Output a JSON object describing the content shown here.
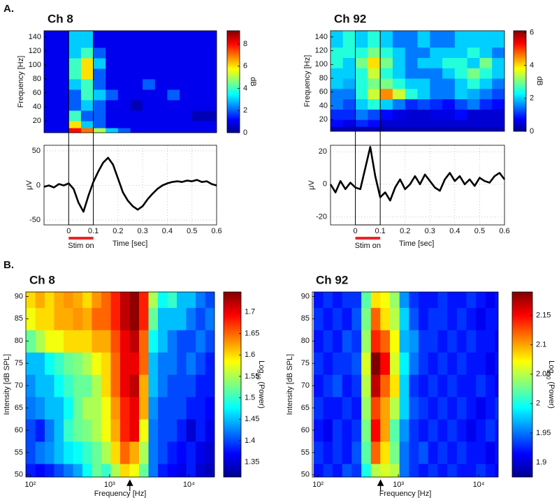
{
  "panel_labels": [
    "A.",
    "B."
  ],
  "chart_data": [
    {
      "type": "heatmap",
      "title": "Ch 8",
      "ylabel": "Frequency [Hz]",
      "colormap": "jet",
      "xlim": [
        -0.1,
        0.6
      ],
      "ylim": [
        3,
        149
      ],
      "yticks": [
        20,
        40,
        60,
        80,
        100,
        120,
        140
      ],
      "xbins": [
        -0.1,
        -0.05,
        0,
        0.05,
        0.1,
        0.15,
        0.2,
        0.25,
        0.3,
        0.35,
        0.4,
        0.45,
        0.5,
        0.55,
        0.6
      ],
      "ybins": [
        3,
        10,
        20,
        35,
        50,
        65,
        80,
        95,
        110,
        125,
        149
      ],
      "values": [
        [
          1,
          1,
          8,
          7,
          5,
          3,
          2,
          1,
          1,
          1,
          1,
          1,
          1,
          1
        ],
        [
          1,
          1,
          6,
          3,
          2,
          1,
          1,
          1,
          1,
          1,
          1,
          1,
          1,
          1
        ],
        [
          1,
          1,
          4,
          2,
          2,
          1,
          1,
          1,
          1,
          1,
          1,
          1,
          0.5,
          0.5
        ],
        [
          1,
          1,
          2,
          3,
          2,
          1,
          1,
          0.5,
          1,
          1,
          1,
          1,
          1,
          1
        ],
        [
          1,
          1,
          2,
          4,
          3,
          2,
          1,
          1,
          1,
          1,
          2,
          1,
          1,
          1
        ],
        [
          1,
          1,
          3,
          4,
          2,
          1,
          1,
          1,
          2,
          1,
          1,
          1,
          1,
          1
        ],
        [
          1,
          1,
          4,
          6,
          2,
          1,
          1,
          1,
          1,
          1,
          1,
          1,
          1,
          1
        ],
        [
          1,
          1,
          4,
          6,
          3,
          1,
          1,
          1,
          1,
          1,
          1,
          1,
          1,
          1
        ],
        [
          1,
          1,
          3,
          4,
          2,
          1,
          1,
          1,
          1,
          1,
          1,
          1,
          1,
          1
        ],
        [
          1,
          1,
          3,
          3,
          1,
          1,
          1,
          1,
          1,
          1,
          1,
          1,
          1,
          1
        ]
      ],
      "clim": [
        0,
        9.2
      ],
      "cticks": [
        0,
        2,
        4,
        6,
        8
      ],
      "colorbar_label": [
        "dB"
      ]
    },
    {
      "type": "line",
      "ylabel": "μV",
      "xlabel": "Time [sec]",
      "color": "#000000",
      "grid": true,
      "xlim": [
        -0.1,
        0.6
      ],
      "ylim": [
        -57,
        58
      ],
      "xticks": [
        0,
        0.1,
        0.2,
        0.3,
        0.4,
        0.5,
        0.6
      ],
      "yticks": [
        -50,
        0,
        50
      ],
      "x": [
        -0.1,
        -0.08,
        -0.06,
        -0.04,
        -0.02,
        0,
        0.02,
        0.04,
        0.06,
        0.08,
        0.1,
        0.12,
        0.14,
        0.16,
        0.18,
        0.2,
        0.22,
        0.24,
        0.26,
        0.28,
        0.3,
        0.32,
        0.34,
        0.36,
        0.38,
        0.4,
        0.42,
        0.44,
        0.46,
        0.48,
        0.5,
        0.52,
        0.54,
        0.56,
        0.58,
        0.6
      ],
      "values": [
        -2,
        0,
        -3,
        2,
        0,
        3,
        -5,
        -25,
        -38,
        -15,
        5,
        20,
        33,
        40,
        30,
        10,
        -10,
        -22,
        -30,
        -35,
        -30,
        -20,
        -12,
        -5,
        0,
        3,
        5,
        6,
        5,
        7,
        6,
        8,
        5,
        6,
        2,
        0
      ],
      "stim_window": [
        0,
        0.1
      ],
      "stim_label": "Stim on",
      "stim_color": "#e8262a"
    },
    {
      "type": "heatmap",
      "title": "Ch 92",
      "ylabel": "Frequency [Hz]",
      "colormap": "jet",
      "xlim": [
        -0.1,
        0.6
      ],
      "ylim": [
        3,
        149
      ],
      "yticks": [
        20,
        40,
        60,
        80,
        100,
        120,
        140
      ],
      "xbins": [
        -0.1,
        -0.05,
        0,
        0.05,
        0.1,
        0.15,
        0.2,
        0.25,
        0.3,
        0.35,
        0.4,
        0.45,
        0.5,
        0.55,
        0.6
      ],
      "ybins": [
        3,
        10,
        20,
        35,
        50,
        65,
        80,
        95,
        110,
        125,
        149
      ],
      "values": [
        [
          0.3,
          0.3,
          0.3,
          0.3,
          0.3,
          0.3,
          0.3,
          0.3,
          0.3,
          0.3,
          0.3,
          0.3,
          0.3,
          0.3
        ],
        [
          0.8,
          0.6,
          1,
          0.8,
          0.5,
          0.5,
          0.5,
          0.5,
          0.5,
          0.5,
          0.5,
          0.5,
          0.5,
          0.5
        ],
        [
          1,
          1,
          1.5,
          1.2,
          0.8,
          0.6,
          0.5,
          0.5,
          0.6,
          0.6,
          0.8,
          0.5,
          0.5,
          0.5
        ],
        [
          1.5,
          1.2,
          2,
          2.5,
          2,
          1.5,
          1,
          1.2,
          1,
          0.8,
          1.2,
          1.5,
          1,
          0.8
        ],
        [
          1.5,
          1.5,
          2.5,
          3.5,
          4.5,
          3.5,
          2.5,
          2,
          1.5,
          1.5,
          2,
          1.8,
          1.5,
          1.2
        ],
        [
          2,
          1.8,
          2.5,
          3,
          3,
          2.5,
          2,
          2,
          1.5,
          1.5,
          2,
          2.5,
          2,
          1.5
        ],
        [
          2,
          2,
          2.5,
          3.5,
          2.5,
          2,
          1.5,
          1.5,
          1.5,
          2,
          2.5,
          3,
          2.5,
          2
        ],
        [
          2.5,
          2,
          3,
          4,
          3,
          2,
          1.5,
          2,
          2,
          2.5,
          2.5,
          2,
          3,
          2
        ],
        [
          2.5,
          2.5,
          2.5,
          3,
          2.5,
          2,
          1.5,
          1.5,
          2,
          2,
          2,
          2.5,
          2,
          1.5
        ],
        [
          2,
          2.5,
          2,
          2.5,
          2,
          1.5,
          1.5,
          2,
          1.5,
          1.5,
          2,
          2,
          2,
          2
        ]
      ],
      "clim": [
        0,
        6.1
      ],
      "cticks": [
        0,
        2,
        4,
        6
      ],
      "colorbar_label": [
        "dB"
      ]
    },
    {
      "type": "line",
      "ylabel": "μV",
      "xlabel": "Time [sec]",
      "color": "#000000",
      "grid": true,
      "xlim": [
        -0.1,
        0.6
      ],
      "ylim": [
        -25,
        24
      ],
      "xticks": [
        0,
        0.1,
        0.2,
        0.3,
        0.4,
        0.5,
        0.6
      ],
      "yticks": [
        -20,
        0,
        20
      ],
      "x": [
        -0.1,
        -0.08,
        -0.06,
        -0.04,
        -0.02,
        0,
        0.02,
        0.04,
        0.06,
        0.08,
        0.1,
        0.12,
        0.14,
        0.16,
        0.18,
        0.2,
        0.22,
        0.24,
        0.26,
        0.28,
        0.3,
        0.32,
        0.34,
        0.36,
        0.38,
        0.4,
        0.42,
        0.44,
        0.46,
        0.48,
        0.5,
        0.52,
        0.54,
        0.56,
        0.58,
        0.6
      ],
      "values": [
        0,
        -5,
        2,
        -3,
        1,
        -2,
        -3,
        10,
        23,
        5,
        -8,
        -5,
        -10,
        -2,
        3,
        -3,
        0,
        5,
        0,
        6,
        2,
        -2,
        -4,
        3,
        7,
        2,
        5,
        0,
        3,
        -1,
        4,
        2,
        1,
        5,
        7,
        3
      ],
      "stim_window": [
        0,
        0.1
      ],
      "stim_label": "Stim on",
      "stim_color": "#e8262a"
    },
    {
      "type": "heatmap",
      "title": "Ch 8",
      "xlabel": "Frequency [Hz]",
      "ylabel": "Intensity [dB SPL]",
      "colormap": "jet",
      "xscale": "log",
      "xlim": [
        88,
        21000
      ],
      "ylim": [
        49.5,
        91
      ],
      "xticks": [
        {
          "value": 100,
          "label": "10²"
        },
        {
          "value": 1000,
          "label": "10³"
        },
        {
          "value": 10000,
          "label": "10⁴"
        }
      ],
      "yticks": [
        50,
        55,
        60,
        65,
        70,
        75,
        80,
        85,
        90
      ],
      "xbins": [
        88,
        116,
        152,
        200,
        263,
        346,
        455,
        597,
        785,
        1033,
        1358,
        1786,
        2350,
        3090,
        4064,
        5346,
        7031,
        9247,
        12162,
        15996,
        21000
      ],
      "ybins": [
        47.5,
        52.5,
        57.5,
        62.5,
        67.5,
        72.5,
        77.5,
        82.5,
        87.5,
        92.5
      ],
      "values": [
        [
          1.38,
          1.37,
          1.38,
          1.4,
          1.42,
          1.44,
          1.48,
          1.52,
          1.5,
          1.55,
          1.6,
          1.58,
          1.52,
          1.42,
          1.38,
          1.37,
          1.36,
          1.38,
          1.35,
          1.34
        ],
        [
          1.4,
          1.42,
          1.43,
          1.45,
          1.47,
          1.48,
          1.5,
          1.52,
          1.55,
          1.6,
          1.65,
          1.62,
          1.55,
          1.42,
          1.4,
          1.38,
          1.37,
          1.38,
          1.36,
          1.35
        ],
        [
          1.4,
          1.38,
          1.42,
          1.45,
          1.5,
          1.52,
          1.53,
          1.55,
          1.58,
          1.62,
          1.68,
          1.7,
          1.58,
          1.42,
          1.4,
          1.4,
          1.38,
          1.35,
          1.38,
          1.36
        ],
        [
          1.42,
          1.43,
          1.45,
          1.45,
          1.48,
          1.52,
          1.55,
          1.55,
          1.58,
          1.63,
          1.68,
          1.7,
          1.62,
          1.43,
          1.4,
          1.4,
          1.4,
          1.38,
          1.38,
          1.37
        ],
        [
          1.43,
          1.45,
          1.45,
          1.48,
          1.5,
          1.52,
          1.52,
          1.55,
          1.6,
          1.65,
          1.7,
          1.72,
          1.62,
          1.45,
          1.42,
          1.4,
          1.4,
          1.4,
          1.38,
          1.38
        ],
        [
          1.45,
          1.45,
          1.48,
          1.5,
          1.52,
          1.53,
          1.55,
          1.58,
          1.6,
          1.65,
          1.7,
          1.7,
          1.65,
          1.45,
          1.42,
          1.42,
          1.4,
          1.42,
          1.4,
          1.38
        ],
        [
          1.52,
          1.55,
          1.58,
          1.58,
          1.6,
          1.6,
          1.6,
          1.62,
          1.62,
          1.66,
          1.7,
          1.72,
          1.65,
          1.48,
          1.45,
          1.42,
          1.4,
          1.4,
          1.42,
          1.4
        ],
        [
          1.58,
          1.6,
          1.6,
          1.62,
          1.62,
          1.63,
          1.62,
          1.65,
          1.65,
          1.68,
          1.72,
          1.74,
          1.68,
          1.52,
          1.45,
          1.45,
          1.45,
          1.42,
          1.4,
          1.42
        ],
        [
          1.6,
          1.62,
          1.6,
          1.62,
          1.63,
          1.62,
          1.6,
          1.63,
          1.65,
          1.68,
          1.72,
          1.74,
          1.68,
          1.55,
          1.48,
          1.5,
          1.45,
          1.45,
          1.42,
          1.4
        ]
      ],
      "clim": [
        1.315,
        1.747
      ],
      "cticks": [
        1.35,
        1.4,
        1.45,
        1.5,
        1.55,
        1.6,
        1.65,
        1.7
      ],
      "colorbar_label": [
        "Log",
        "10",
        " (Power)"
      ],
      "arrow_x": 1800
    },
    {
      "type": "heatmap",
      "title": "Ch 92",
      "xlabel": "Frequency [Hz]",
      "ylabel": "Intensity [dB SPL]",
      "colormap": "jet",
      "xscale": "log",
      "xlim": [
        85,
        17500
      ],
      "ylim": [
        49.5,
        91
      ],
      "xticks": [
        {
          "value": 100,
          "label": "10²"
        },
        {
          "value": 1000,
          "label": "10³"
        },
        {
          "value": 10000,
          "label": "10⁴"
        }
      ],
      "yticks": [
        50,
        55,
        60,
        65,
        70,
        75,
        80,
        85,
        90
      ],
      "xbins": [
        88,
        116,
        152,
        200,
        263,
        346,
        455,
        597,
        785,
        1033,
        1358,
        1786,
        2350,
        3090,
        4064,
        5346,
        7031,
        9247,
        12162,
        15996,
        21000
      ],
      "ybins": [
        47.5,
        52.5,
        57.5,
        62.5,
        67.5,
        72.5,
        77.5,
        82.5,
        87.5,
        92.5
      ],
      "values": [
        [
          1.92,
          1.93,
          1.92,
          1.94,
          1.93,
          2.0,
          2.05,
          2.06,
          2.05,
          1.95,
          1.93,
          1.92,
          1.93,
          1.92,
          1.93,
          1.92,
          1.92,
          1.93,
          1.92,
          1.91
        ],
        [
          1.93,
          1.92,
          1.93,
          1.92,
          1.94,
          2.02,
          2.12,
          2.08,
          2.03,
          1.95,
          1.93,
          1.94,
          1.92,
          1.93,
          1.92,
          1.93,
          1.92,
          1.92,
          1.91,
          1.92
        ],
        [
          1.92,
          1.91,
          1.93,
          1.92,
          1.93,
          2.03,
          2.15,
          2.1,
          2.02,
          1.96,
          1.93,
          1.92,
          1.93,
          1.92,
          1.93,
          1.92,
          1.91,
          1.92,
          1.93,
          1.92
        ],
        [
          1.93,
          1.92,
          1.92,
          1.93,
          1.92,
          2.04,
          2.13,
          2.1,
          2.05,
          1.98,
          1.94,
          1.93,
          1.92,
          1.93,
          1.92,
          1.93,
          1.92,
          1.91,
          1.92,
          1.93
        ],
        [
          1.92,
          1.93,
          1.94,
          1.92,
          1.93,
          2.05,
          2.17,
          2.12,
          2.08,
          1.98,
          1.93,
          1.92,
          1.93,
          1.92,
          1.93,
          1.92,
          1.92,
          1.93,
          1.92,
          1.91
        ],
        [
          1.93,
          1.92,
          1.93,
          1.93,
          1.94,
          2.06,
          2.19,
          2.15,
          2.06,
          1.99,
          1.95,
          1.93,
          1.92,
          1.93,
          1.92,
          1.93,
          1.92,
          1.92,
          1.91,
          1.92
        ],
        [
          1.92,
          1.93,
          1.92,
          1.94,
          1.93,
          2.04,
          2.14,
          2.12,
          2.07,
          1.97,
          1.96,
          1.93,
          1.93,
          1.92,
          1.93,
          1.92,
          1.93,
          1.92,
          1.92,
          1.91
        ],
        [
          1.93,
          1.92,
          1.93,
          1.92,
          1.94,
          2.03,
          2.12,
          2.08,
          2.05,
          1.98,
          1.94,
          1.92,
          1.93,
          1.93,
          1.92,
          1.93,
          1.92,
          1.91,
          1.92,
          1.92
        ],
        [
          1.92,
          1.93,
          1.92,
          1.93,
          1.93,
          2.02,
          2.08,
          2.07,
          2.04,
          1.96,
          1.93,
          1.92,
          1.92,
          1.93,
          1.92,
          1.92,
          1.93,
          1.92,
          1.91,
          1.92
        ]
      ],
      "clim": [
        1.875,
        2.19
      ],
      "cticks": [
        1.9,
        1.95,
        2,
        2.05,
        2.1,
        2.15
      ],
      "colorbar_label": [
        "Log",
        "10",
        " (Power)"
      ],
      "arrow_x": 600
    }
  ]
}
